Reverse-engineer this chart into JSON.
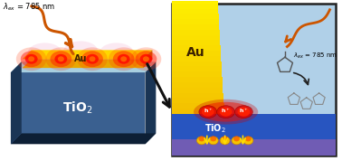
{
  "bg_color": "#ffffff",
  "arrow_color": "#cc5500",
  "left": {
    "slab_front": "#3a6090",
    "slab_top": "#a8cfe0",
    "slab_right": "#1a3555",
    "slab_bottom": "#0d1f35",
    "slab_left_face": "#1a3555",
    "au_bar_top": "#ffd700",
    "au_bar_face": "#e8a800",
    "au_bar_right": "#b88000",
    "tio2_label_color": "#ffffff",
    "au_label_color": "#3a2000",
    "hotspot_r": "#ff1100",
    "hotspot_outer": "#ff3300",
    "glow_pink": "#ee88bb"
  },
  "right": {
    "border": "#222222",
    "bg": "#b0d0e8",
    "au_yellow_top": "#ffe040",
    "au_yellow_bot": "#f0b000",
    "tio2_blue": "#2855c0",
    "tio2_purple_bot": "#9060b0",
    "tio2_label": "#ffffff",
    "au_label": "#3a2000",
    "h_label": "#ffffff",
    "hotspot_r": "#ff1100",
    "hotspot_outer": "#ff3300",
    "nano_gold": "#f5c400",
    "nano_red": "#ff3300",
    "chem_color": "#888888"
  }
}
